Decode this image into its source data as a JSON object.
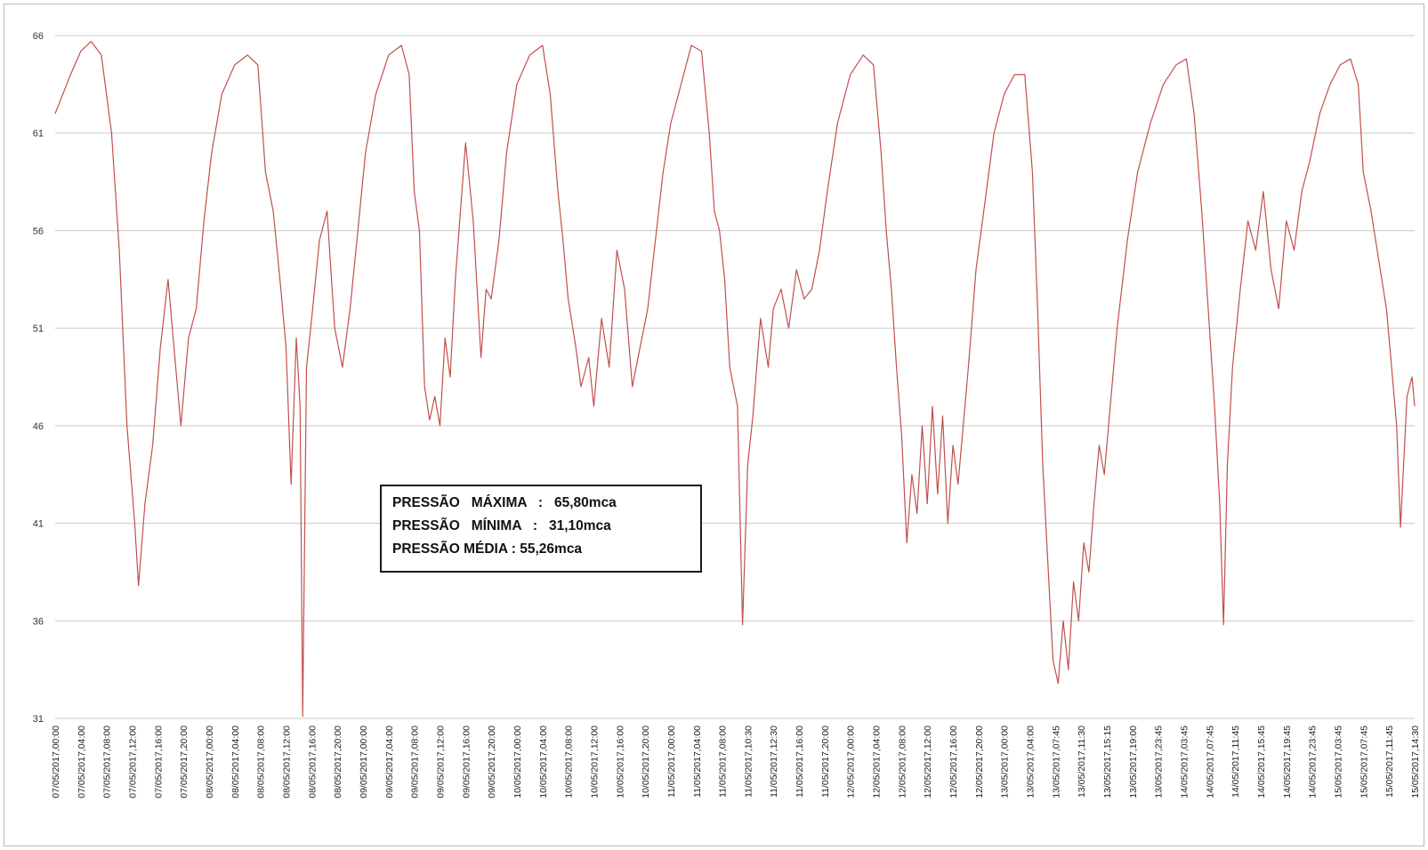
{
  "chart_data": {
    "type": "line",
    "title": "",
    "xlabel": "",
    "ylabel": "",
    "ylim": [
      31,
      66
    ],
    "y_ticks": [
      "66",
      "61",
      "56",
      "51",
      "46",
      "41",
      "36",
      "31"
    ],
    "grid": true,
    "colors": {
      "series": "#c0504d",
      "grid": "#c8c8c8"
    },
    "x_tick_labels": [
      "07/05/2017,00:00",
      "07/05/2017,04:00",
      "07/05/2017,08:00",
      "07/05/2017,12:00",
      "07/05/2017,16:00",
      "07/05/2017,20:00",
      "08/05/2017,00:00",
      "08/05/2017,04:00",
      "08/05/2017,08:00",
      "08/05/2017,12:00",
      "08/05/2017,16:00",
      "08/05/2017,20:00",
      "09/05/2017,00:00",
      "09/05/2017,04:00",
      "09/05/2017,08:00",
      "09/05/2017,12:00",
      "09/05/2017,16:00",
      "09/05/2017,20:00",
      "10/05/2017,00:00",
      "10/05/2017,04:00",
      "10/05/2017,08:00",
      "10/05/2017,12:00",
      "10/05/2017,16:00",
      "10/05/2017,20:00",
      "11/05/2017,00:00",
      "11/05/2017,04:00",
      "11/05/2017,08:00",
      "11/05/2017,10:30",
      "11/05/2017,12:30",
      "11/05/2017,16:00",
      "11/05/2017,20:00",
      "12/05/2017,00:00",
      "12/05/2017,04:00",
      "12/05/2017,08:00",
      "12/05/2017,12:00",
      "12/05/2017,16:00",
      "12/05/2017,20:00",
      "13/05/2017,00:00",
      "13/05/2017,04:00",
      "13/05/2017,07:45",
      "13/05/2017,11:30",
      "13/05/2017,15:15",
      "13/05/2017,19:00",
      "13/05/2017,23:45",
      "14/05/2017,03:45",
      "14/05/2017,07:45",
      "14/05/2017,11:45",
      "14/05/2017,15:45",
      "14/05/2017,19:45",
      "14/05/2017,23:45",
      "15/05/2017,03:45",
      "15/05/2017,07:45",
      "15/05/2017,11:45",
      "15/05/2017,14:30"
    ],
    "series": [
      {
        "points": [
          [
            0,
            62.0
          ],
          [
            0.6,
            64.0
          ],
          [
            1.0,
            65.2
          ],
          [
            1.4,
            65.7
          ],
          [
            1.8,
            65.0
          ],
          [
            2.2,
            61.0
          ],
          [
            2.5,
            55.0
          ],
          [
            2.8,
            46.0
          ],
          [
            3.1,
            41.0
          ],
          [
            3.25,
            37.8
          ],
          [
            3.5,
            42.0
          ],
          [
            3.8,
            45.0
          ],
          [
            4.1,
            50.0
          ],
          [
            4.4,
            53.5
          ],
          [
            4.7,
            49.0
          ],
          [
            4.9,
            46.0
          ],
          [
            5.2,
            50.5
          ],
          [
            5.5,
            52.0
          ],
          [
            5.8,
            56.5
          ],
          [
            6.1,
            60.0
          ],
          [
            6.5,
            63.0
          ],
          [
            7.0,
            64.5
          ],
          [
            7.5,
            65.0
          ],
          [
            7.9,
            64.5
          ],
          [
            8.2,
            59.0
          ],
          [
            8.5,
            57.0
          ],
          [
            8.8,
            53.0
          ],
          [
            9.0,
            50.0
          ],
          [
            9.2,
            43.0
          ],
          [
            9.4,
            50.5
          ],
          [
            9.55,
            47.0
          ],
          [
            9.65,
            31.1
          ],
          [
            9.8,
            49.0
          ],
          [
            10.0,
            51.5
          ],
          [
            10.3,
            55.5
          ],
          [
            10.6,
            57.0
          ],
          [
            10.9,
            51.0
          ],
          [
            11.2,
            49.0
          ],
          [
            11.5,
            52.0
          ],
          [
            11.8,
            56.0
          ],
          [
            12.1,
            60.0
          ],
          [
            12.5,
            63.0
          ],
          [
            13.0,
            65.0
          ],
          [
            13.5,
            65.5
          ],
          [
            13.8,
            64.0
          ],
          [
            14.0,
            58.0
          ],
          [
            14.2,
            56.0
          ],
          [
            14.4,
            48.0
          ],
          [
            14.6,
            46.3
          ],
          [
            14.8,
            47.5
          ],
          [
            15.0,
            46.0
          ],
          [
            15.2,
            50.5
          ],
          [
            15.4,
            48.5
          ],
          [
            15.6,
            53.5
          ],
          [
            15.8,
            57.0
          ],
          [
            16.0,
            60.5
          ],
          [
            16.3,
            56.5
          ],
          [
            16.6,
            49.5
          ],
          [
            16.8,
            53.0
          ],
          [
            17.0,
            52.5
          ],
          [
            17.3,
            55.5
          ],
          [
            17.6,
            60.0
          ],
          [
            18.0,
            63.5
          ],
          [
            18.5,
            65.0
          ],
          [
            19.0,
            65.5
          ],
          [
            19.3,
            63.0
          ],
          [
            19.6,
            58.0
          ],
          [
            19.8,
            55.5
          ],
          [
            20.0,
            52.5
          ],
          [
            20.3,
            50.0
          ],
          [
            20.5,
            48.0
          ],
          [
            20.8,
            49.5
          ],
          [
            21.0,
            47.0
          ],
          [
            21.3,
            51.5
          ],
          [
            21.6,
            49.0
          ],
          [
            21.9,
            55.0
          ],
          [
            22.2,
            53.0
          ],
          [
            22.5,
            48.0
          ],
          [
            22.8,
            50.0
          ],
          [
            23.1,
            52.0
          ],
          [
            23.4,
            55.5
          ],
          [
            23.7,
            59.0
          ],
          [
            24.0,
            61.5
          ],
          [
            24.4,
            63.5
          ],
          [
            24.8,
            65.5
          ],
          [
            25.2,
            65.2
          ],
          [
            25.5,
            61.0
          ],
          [
            25.7,
            57.0
          ],
          [
            25.9,
            56.0
          ],
          [
            26.1,
            53.5
          ],
          [
            26.3,
            49.0
          ],
          [
            26.6,
            47.0
          ],
          [
            26.8,
            35.8
          ],
          [
            27.0,
            44.0
          ],
          [
            27.2,
            46.5
          ],
          [
            27.5,
            51.5
          ],
          [
            27.8,
            49.0
          ],
          [
            28.0,
            52.0
          ],
          [
            28.3,
            53.0
          ],
          [
            28.6,
            51.0
          ],
          [
            28.9,
            54.0
          ],
          [
            29.2,
            52.5
          ],
          [
            29.5,
            53.0
          ],
          [
            29.8,
            55.0
          ],
          [
            30.1,
            58.0
          ],
          [
            30.5,
            61.5
          ],
          [
            31.0,
            64.0
          ],
          [
            31.5,
            65.0
          ],
          [
            31.9,
            64.5
          ],
          [
            32.2,
            60.0
          ],
          [
            32.4,
            56.0
          ],
          [
            32.6,
            53.0
          ],
          [
            32.8,
            49.0
          ],
          [
            33.0,
            45.5
          ],
          [
            33.2,
            40.0
          ],
          [
            33.4,
            43.5
          ],
          [
            33.6,
            41.5
          ],
          [
            33.8,
            46.0
          ],
          [
            34.0,
            42.0
          ],
          [
            34.2,
            47.0
          ],
          [
            34.4,
            42.5
          ],
          [
            34.6,
            46.5
          ],
          [
            34.8,
            41.0
          ],
          [
            35.0,
            45.0
          ],
          [
            35.2,
            43.0
          ],
          [
            35.4,
            46.0
          ],
          [
            35.6,
            49.0
          ],
          [
            35.9,
            54.0
          ],
          [
            36.2,
            57.0
          ],
          [
            36.6,
            61.0
          ],
          [
            37.0,
            63.0
          ],
          [
            37.4,
            64.0
          ],
          [
            37.8,
            64.0
          ],
          [
            38.1,
            59.0
          ],
          [
            38.3,
            52.0
          ],
          [
            38.5,
            44.0
          ],
          [
            38.7,
            39.0
          ],
          [
            38.9,
            34.0
          ],
          [
            39.1,
            32.8
          ],
          [
            39.3,
            36.0
          ],
          [
            39.5,
            33.5
          ],
          [
            39.7,
            38.0
          ],
          [
            39.9,
            36.0
          ],
          [
            40.1,
            40.0
          ],
          [
            40.3,
            38.5
          ],
          [
            40.5,
            42.0
          ],
          [
            40.7,
            45.0
          ],
          [
            40.9,
            43.5
          ],
          [
            41.1,
            46.5
          ],
          [
            41.4,
            51.0
          ],
          [
            41.8,
            55.5
          ],
          [
            42.2,
            59.0
          ],
          [
            42.7,
            61.5
          ],
          [
            43.2,
            63.5
          ],
          [
            43.7,
            64.5
          ],
          [
            44.1,
            64.8
          ],
          [
            44.4,
            62.0
          ],
          [
            44.7,
            57.0
          ],
          [
            45.0,
            51.0
          ],
          [
            45.2,
            47.0
          ],
          [
            45.4,
            42.0
          ],
          [
            45.55,
            35.8
          ],
          [
            45.7,
            44.0
          ],
          [
            45.9,
            49.0
          ],
          [
            46.2,
            53.0
          ],
          [
            46.5,
            56.5
          ],
          [
            46.8,
            55.0
          ],
          [
            47.1,
            58.0
          ],
          [
            47.4,
            54.0
          ],
          [
            47.7,
            52.0
          ],
          [
            48.0,
            56.5
          ],
          [
            48.3,
            55.0
          ],
          [
            48.6,
            58.0
          ],
          [
            48.9,
            59.5
          ],
          [
            49.3,
            62.0
          ],
          [
            49.7,
            63.5
          ],
          [
            50.1,
            64.5
          ],
          [
            50.5,
            64.8
          ],
          [
            50.8,
            63.5
          ],
          [
            51.0,
            59.0
          ],
          [
            51.3,
            57.0
          ],
          [
            51.6,
            54.5
          ],
          [
            51.9,
            52.0
          ],
          [
            52.1,
            49.0
          ],
          [
            52.3,
            46.0
          ],
          [
            52.45,
            40.8
          ],
          [
            52.7,
            47.5
          ],
          [
            52.9,
            48.5
          ],
          [
            53.0,
            47.0
          ]
        ]
      }
    ],
    "annotation": {
      "lines": [
        "PRESSÃO   MÁXIMA   :   65,80mca",
        "PRESSÃO   MÍNIMA   :   31,10mca",
        "PRESSÃO MÉDIA : 55,26mca"
      ]
    }
  }
}
